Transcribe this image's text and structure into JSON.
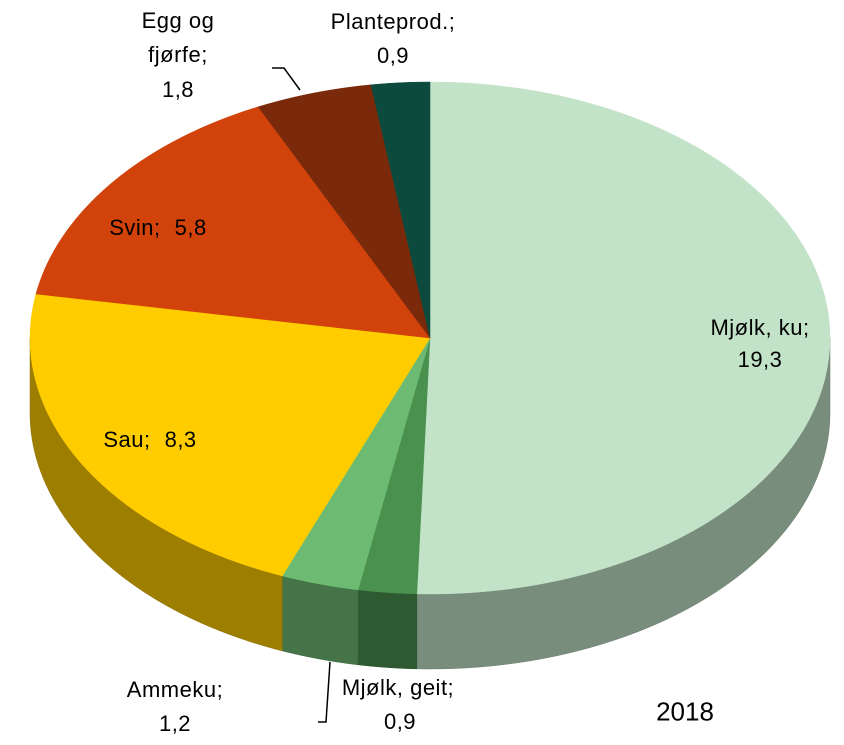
{
  "chart_data": {
    "type": "pie3d",
    "subtitle": "2018",
    "categories": [
      "Mjølk, ku;",
      "Mjølk, geit;",
      "Ammeku;",
      "Sau;",
      "Svin;",
      "Egg og fjørfe;",
      "Planteprod.;"
    ],
    "values": [
      19.3,
      0.9,
      1.2,
      8.3,
      5.8,
      1.8,
      0.9
    ],
    "value_labels": [
      "19,3",
      "0,9",
      "1,2",
      "8,3",
      "5,8",
      "1,8",
      "0,9"
    ],
    "colors": [
      "#c3e3c8",
      "#4a9150",
      "#6dbb72",
      "#ffcc00",
      "#d2430b",
      "#7a2a0a",
      "#0b4a3c"
    ]
  }
}
